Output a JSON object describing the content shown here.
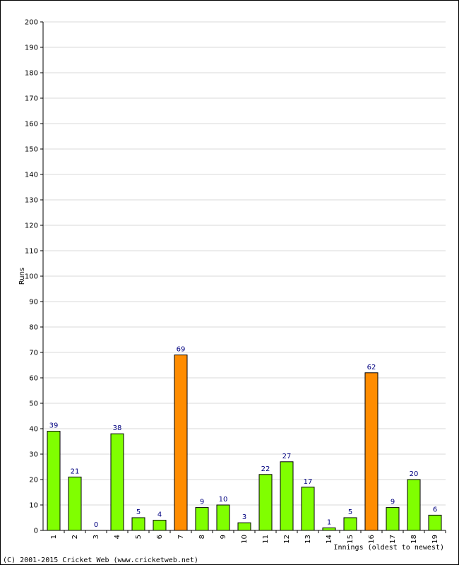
{
  "chart_data": {
    "type": "bar",
    "ylabel": "Runs",
    "xlabel": "Innings (oldest to newest)",
    "ylim": [
      0,
      200
    ],
    "ytick_step": 10,
    "grid": true,
    "categories": [
      "1",
      "2",
      "3",
      "4",
      "5",
      "6",
      "7",
      "8",
      "9",
      "10",
      "11",
      "12",
      "13",
      "14",
      "15",
      "16",
      "17",
      "18",
      "19"
    ],
    "values": [
      39,
      21,
      0,
      38,
      5,
      4,
      69,
      9,
      10,
      3,
      22,
      27,
      17,
      1,
      5,
      62,
      9,
      20,
      6
    ],
    "highlight": [
      false,
      false,
      false,
      false,
      false,
      false,
      true,
      false,
      false,
      false,
      false,
      false,
      false,
      false,
      false,
      true,
      false,
      false,
      false
    ],
    "colors": {
      "bar": "#80ff00",
      "highlight": "#ff8c00",
      "grid": "#d9d9d9",
      "label": "#000080"
    }
  },
  "footer": {
    "copyright": "(C) 2001-2015 Cricket Web (www.cricketweb.net)"
  }
}
